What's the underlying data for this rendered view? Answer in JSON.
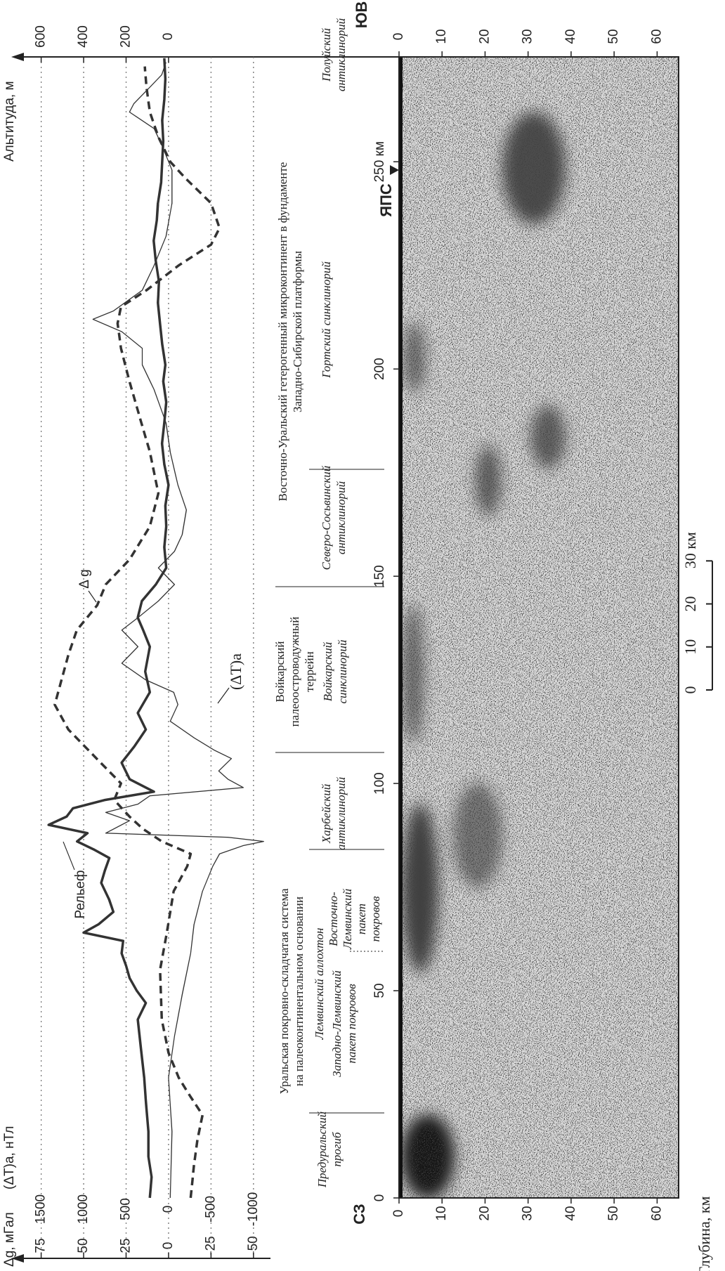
{
  "chart_data": [
    {
      "type": "line",
      "xlim": [
        -14.6,
        275.3
      ],
      "ylabel": "Δg, мГал",
      "ylim": [
        -60,
        86
      ],
      "yticks": [
        -50,
        -25,
        0,
        25,
        50,
        75
      ],
      "y2label": "(ΔT)a, нТл",
      "y2lim": [
        -1200,
        1720
      ],
      "y2ticks": [
        -1000,
        -500,
        0,
        500,
        1000,
        1500
      ],
      "y3label": "Альтитуда, м",
      "y3lim": [
        -480,
        688
      ],
      "y3ticks": [
        0,
        200,
        400,
        600
      ],
      "grid": true,
      "series": [
        {
          "name": "Рельеф",
          "axis": "y3",
          "color": "#333333",
          "linewidth": 3.5,
          "linestyle": "solid",
          "x": [
            0,
            5,
            10,
            16,
            22,
            29,
            36,
            43,
            47,
            50,
            53,
            56,
            59,
            62,
            64,
            66,
            69,
            72,
            76,
            79,
            82,
            84,
            86,
            88,
            90,
            92,
            94,
            96,
            98,
            101,
            105,
            109,
            113,
            117,
            122,
            127,
            133,
            137,
            140,
            144,
            148,
            152,
            157,
            162,
            167,
            172,
            177,
            182,
            187,
            192,
            197,
            201,
            206,
            211,
            216,
            221,
            226,
            231,
            236,
            240,
            245,
            250,
            255,
            260,
            265,
            270,
            275
          ],
          "values": [
            88,
            80,
            95,
            95,
            105,
            115,
            130,
            145,
            107,
            150,
            183,
            200,
            221,
            214,
            400,
            330,
            260,
            280,
            317,
            300,
            279,
            350,
            431,
            382,
            565,
            480,
            450,
            300,
            69,
            183,
            221,
            160,
            107,
            145,
            88,
            110,
            88,
            120,
            145,
            126,
            60,
            11,
            20,
            11,
            15,
            0,
            20,
            31,
            20,
            11,
            25,
            15,
            30,
            40,
            50,
            45,
            60,
            70,
            55,
            50,
            35,
            30,
            25,
            30,
            20,
            15,
            20
          ]
        },
        {
          "name": "Δ g",
          "axis": "y",
          "color": "#333333",
          "linewidth": 3.5,
          "linestyle": "dashed",
          "x": [
            0,
            8,
            14,
            20,
            25,
            29,
            35,
            43,
            55,
            64,
            74,
            80,
            83,
            86,
            89,
            92,
            96,
            100,
            105,
            113,
            119,
            125,
            131,
            137,
            143,
            148,
            154,
            162,
            170,
            180,
            187,
            197,
            205,
            211,
            215,
            219,
            225,
            230,
            234,
            240,
            246,
            250,
            256,
            262,
            268,
            273
          ],
          "values": [
            -13,
            -15,
            -17,
            -20,
            -12,
            -6,
            0,
            4,
            5,
            1,
            -3,
            -11,
            -13,
            4,
            15,
            23,
            32,
            28,
            40,
            59,
            67,
            63,
            59,
            54,
            42,
            37,
            23,
            11,
            6,
            11,
            16,
            23,
            28,
            30,
            28,
            13,
            -6,
            -25,
            -30,
            -25,
            -10,
            -1,
            6,
            11,
            13,
            14
          ]
        },
        {
          "name": "(ΔT)a",
          "axis": "y2",
          "color": "#333333",
          "linewidth": 1.3,
          "linestyle": "solid",
          "x": [
            0,
            16,
            29,
            39,
            49,
            59,
            66,
            74,
            80,
            83,
            85,
            86,
            87,
            88,
            91,
            93,
            95,
            97,
            99,
            101,
            103,
            106,
            108,
            111,
            115,
            119,
            122,
            125,
            129,
            133,
            137,
            140,
            144,
            148,
            152,
            156,
            160,
            166,
            172,
            180,
            187,
            195,
            201,
            205,
            209,
            212,
            214,
            219,
            225,
            232,
            240,
            248,
            254,
            258,
            262,
            264,
            268,
            271,
            274
          ],
          "values": [
            -20,
            -40,
            0,
            -70,
            -160,
            -260,
            -300,
            -400,
            -520,
            -600,
            -880,
            -1120,
            -700,
            740,
            460,
            740,
            360,
            220,
            -880,
            -700,
            -590,
            -740,
            -540,
            -300,
            -20,
            -110,
            -60,
            270,
            550,
            360,
            550,
            360,
            120,
            -70,
            120,
            -70,
            -160,
            -210,
            -110,
            -20,
            30,
            170,
            310,
            310,
            550,
            890,
            650,
            310,
            170,
            30,
            -40,
            -40,
            80,
            170,
            460,
            410,
            220,
            80,
            30
          ]
        }
      ]
    },
    {
      "type": "section",
      "xlim": [
        0,
        275.3
      ],
      "xticks": [
        0,
        50,
        100,
        150,
        200,
        {
          "value": 250,
          "label": "250 км"
        }
      ],
      "ylim": [
        0,
        65
      ],
      "yticks": [
        0,
        10,
        20,
        30,
        40,
        50,
        60
      ],
      "ylabel": "Глубина, км",
      "left_label": "СЗ",
      "right_label": "ЮВ",
      "markers": [
        {
          "label": "ЯПС",
          "x": 248
        }
      ],
      "scalebar": {
        "ticks": [
          0,
          10,
          20,
          {
            "value": 30,
            "label": "30 км"
          }
        ]
      },
      "annotations": [
        {
          "lines": [
            "Предуральский",
            "прогиб"
          ]
        },
        {
          "lines": [
            "Уральская покровно-складчатая система",
            "на палеоконтинентальном основании"
          ]
        },
        {
          "lines": [
            "Лемвинский аллохтон"
          ]
        },
        {
          "lines": [
            "Западно-Лемвинский",
            "пакет покровов"
          ]
        },
        {
          "lines": [
            "Восточно-",
            "Лемвинский",
            "пакет",
            "покровов"
          ]
        },
        {
          "lines": [
            "Харбейский",
            "антиклинорий"
          ]
        },
        {
          "lines": [
            "Войкарский",
            "палеоостроводужный",
            "террейн"
          ]
        },
        {
          "lines": [
            "Войкарский",
            "синклинорий"
          ]
        },
        {
          "lines": [
            "Северо-Сосьвинский",
            "антиклинорий"
          ]
        },
        {
          "lines": [
            "Восточно-Уральский гетерогенный микроконтинент в фундаменте",
            "Западно-Сибирской платформы"
          ]
        },
        {
          "lines": [
            "Гортский синклинорий"
          ]
        },
        {
          "lines": [
            "Полуйский",
            "антиклинорий"
          ]
        }
      ]
    }
  ]
}
